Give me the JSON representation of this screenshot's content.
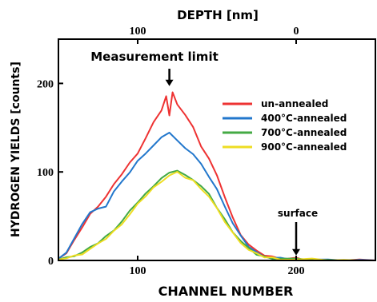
{
  "chart_data": {
    "type": "line",
    "xlabel": "CHANNEL NUMBER",
    "ylabel": "HYDROGEN YIELDS [counts]",
    "top_axis_label": "DEPTH [nm]",
    "xlim": [
      50,
      250
    ],
    "ylim": [
      0,
      250
    ],
    "x_ticks": [
      100,
      200
    ],
    "y_ticks": [
      0,
      100,
      200
    ],
    "top_axis_ticks": [
      {
        "channel": 100,
        "label": "100"
      },
      {
        "channel": 200,
        "label": "0"
      }
    ],
    "grid": false,
    "legend_position": "right",
    "annotations": [
      {
        "text": "Measurement limit",
        "x": 120,
        "arrow_to_y": 197
      },
      {
        "text": "surface",
        "x": 200,
        "arrow_to_y": 2
      }
    ],
    "series": [
      {
        "name": "un-annealed",
        "color": "#ee3333",
        "x": [
          50,
          55,
          60,
          65,
          70,
          75,
          80,
          85,
          90,
          95,
          100,
          105,
          110,
          115,
          118,
          120,
          122,
          125,
          130,
          135,
          140,
          145,
          150,
          155,
          160,
          165,
          170,
          175,
          180,
          185,
          190,
          195,
          200,
          205,
          210,
          220,
          230,
          240,
          250
        ],
        "y": [
          2,
          8,
          22,
          38,
          52,
          62,
          72,
          85,
          98,
          110,
          122,
          138,
          155,
          170,
          185,
          165,
          190,
          175,
          165,
          150,
          130,
          115,
          95,
          72,
          48,
          30,
          18,
          10,
          6,
          4,
          3,
          2,
          2,
          1,
          1,
          1,
          0,
          0,
          0
        ]
      },
      {
        "name": "400°C-annealed",
        "color": "#2277cc",
        "x": [
          50,
          55,
          60,
          65,
          70,
          75,
          80,
          85,
          90,
          95,
          100,
          105,
          110,
          115,
          120,
          125,
          130,
          135,
          140,
          145,
          150,
          155,
          160,
          165,
          170,
          175,
          180,
          185,
          190,
          195,
          200,
          205,
          210,
          220,
          230,
          240,
          250
        ],
        "y": [
          2,
          10,
          25,
          40,
          55,
          58,
          62,
          78,
          88,
          100,
          112,
          122,
          130,
          138,
          145,
          135,
          128,
          120,
          108,
          95,
          80,
          62,
          42,
          27,
          16,
          9,
          5,
          3,
          2,
          2,
          1,
          1,
          1,
          0,
          0,
          0,
          0
        ]
      },
      {
        "name": "700°C-annealed",
        "color": "#44aa44",
        "x": [
          50,
          55,
          60,
          65,
          70,
          75,
          80,
          85,
          90,
          95,
          100,
          105,
          110,
          115,
          120,
          125,
          130,
          135,
          140,
          145,
          150,
          155,
          160,
          165,
          170,
          175,
          180,
          185,
          190,
          200,
          210,
          220,
          230,
          240,
          250
        ],
        "y": [
          1,
          3,
          6,
          9,
          14,
          20,
          27,
          35,
          44,
          55,
          66,
          75,
          85,
          93,
          98,
          102,
          96,
          92,
          84,
          74,
          60,
          46,
          33,
          22,
          13,
          7,
          4,
          3,
          2,
          1,
          1,
          0,
          0,
          0,
          0
        ]
      },
      {
        "name": "900°C-annealed",
        "color": "#eedd22",
        "x": [
          50,
          55,
          60,
          65,
          70,
          75,
          80,
          85,
          90,
          95,
          100,
          105,
          110,
          115,
          120,
          125,
          130,
          135,
          140,
          145,
          150,
          155,
          160,
          165,
          170,
          175,
          180,
          185,
          190,
          200,
          210,
          220,
          230,
          240,
          250
        ],
        "y": [
          1,
          3,
          5,
          8,
          13,
          18,
          25,
          33,
          42,
          52,
          63,
          73,
          82,
          90,
          96,
          99,
          94,
          90,
          82,
          72,
          58,
          44,
          31,
          21,
          12,
          7,
          4,
          3,
          2,
          1,
          1,
          0,
          0,
          0,
          0
        ]
      }
    ]
  }
}
